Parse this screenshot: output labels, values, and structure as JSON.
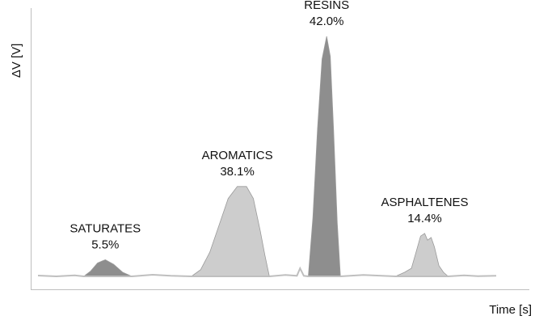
{
  "chart_data": {
    "type": "area",
    "title": "",
    "xlabel": "Time [s]",
    "ylabel": "ΔV [V]",
    "xlim": [
      0,
      100
    ],
    "ylim": [
      0,
      100
    ],
    "grid": false,
    "legend": "none",
    "baseline_color": "#bfbfbf",
    "peaks": [
      {
        "name": "SATURATES",
        "percent": "5.5%",
        "fill": "#8e8e8e",
        "outline": [
          [
            10,
            0
          ],
          [
            11.5,
            2
          ],
          [
            13,
            5
          ],
          [
            14.7,
            6.2
          ],
          [
            16.5,
            4.5
          ],
          [
            18.5,
            1.5
          ],
          [
            20.5,
            0
          ]
        ]
      },
      {
        "name": "AROMATICS",
        "percent": "38.1%",
        "fill": "#cdcdcd",
        "outline": [
          [
            33.5,
            0
          ],
          [
            35.5,
            2.5
          ],
          [
            37.5,
            9
          ],
          [
            39.5,
            19
          ],
          [
            41.5,
            29
          ],
          [
            43.5,
            33.5
          ],
          [
            45.5,
            33.5
          ],
          [
            47,
            29
          ],
          [
            48.5,
            17
          ],
          [
            49.5,
            8
          ],
          [
            50.5,
            0
          ]
        ]
      },
      {
        "name": "RESINS",
        "percent": "42.0%",
        "fill": "#8e8e8e",
        "outline": [
          [
            59,
            0
          ],
          [
            60,
            22
          ],
          [
            61,
            55
          ],
          [
            62,
            81
          ],
          [
            63,
            89.5
          ],
          [
            63.8,
            82
          ],
          [
            64.5,
            55
          ],
          [
            65.3,
            20
          ],
          [
            66,
            0
          ]
        ]
      },
      {
        "name": "ASPHALTENES",
        "percent": "14.4%",
        "fill": "#cdcdcd",
        "outline": [
          [
            78,
            0
          ],
          [
            80,
            1.5
          ],
          [
            81.5,
            3
          ],
          [
            82.5,
            9
          ],
          [
            83.5,
            15
          ],
          [
            84.4,
            16
          ],
          [
            85,
            13.5
          ],
          [
            85.8,
            14.5
          ],
          [
            86.5,
            11
          ],
          [
            87.5,
            4
          ],
          [
            88.5,
            1.5
          ],
          [
            89.5,
            0
          ]
        ]
      }
    ]
  }
}
